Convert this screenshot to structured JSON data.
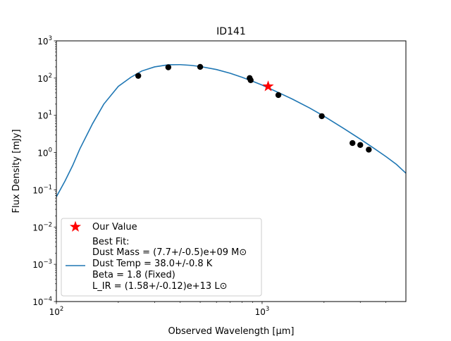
{
  "chart_data": {
    "type": "scatter",
    "title": "ID141",
    "xlabel": "Observed Wavelength [μm]",
    "ylabel": "Flux Density [mJy]",
    "xscale": "log",
    "yscale": "log",
    "xlim": [
      100,
      5000
    ],
    "ylim": [
      0.0001,
      1000
    ],
    "grid": false,
    "legend_position": "lower-left",
    "x_ticks": [
      {
        "value": 100,
        "base": "10",
        "exp": "2"
      },
      {
        "value": 1000,
        "base": "10",
        "exp": "3"
      }
    ],
    "y_ticks": [
      {
        "value": 0.0001,
        "base": "10",
        "exp": "−4"
      },
      {
        "value": 0.001,
        "base": "10",
        "exp": "−3"
      },
      {
        "value": 0.01,
        "base": "10",
        "exp": "−2"
      },
      {
        "value": 0.1,
        "base": "10",
        "exp": "−1"
      },
      {
        "value": 1,
        "base": "10",
        "exp": "0"
      },
      {
        "value": 10,
        "base": "10",
        "exp": "1"
      },
      {
        "value": 100,
        "base": "10",
        "exp": "2"
      },
      {
        "value": 1000,
        "base": "10",
        "exp": "3"
      }
    ],
    "observations": {
      "color": "#000000",
      "points": [
        {
          "x": 250,
          "y": 115
        },
        {
          "x": 350,
          "y": 195
        },
        {
          "x": 500,
          "y": 200
        },
        {
          "x": 870,
          "y": 100
        },
        {
          "x": 880,
          "y": 88
        },
        {
          "x": 1200,
          "y": 35
        },
        {
          "x": 1950,
          "y": 9.5
        },
        {
          "x": 2750,
          "y": 1.8
        },
        {
          "x": 3000,
          "y": 1.6
        },
        {
          "x": 3300,
          "y": 1.2
        }
      ]
    },
    "our_value": {
      "name": "Our Value",
      "color": "#ff0000",
      "x": 1070,
      "y": 60
    },
    "best_fit": {
      "color": "#1f77b4",
      "legend_lines": [
        "Best Fit:",
        "Dust Mass = (7.7+/-0.5)e+09 M⊙",
        "Dust Temp = 38.0+/-0.8 K",
        "Beta = 1.8 (Fixed)",
        "L_IR = (1.58+/-0.12)e+13 L⊙"
      ],
      "x": [
        100,
        110,
        120,
        130,
        150,
        170,
        200,
        230,
        260,
        300,
        350,
        400,
        450,
        500,
        600,
        700,
        800,
        900,
        1000,
        1200,
        1400,
        1700,
        2000,
        2500,
        3000,
        3500,
        4000,
        4500,
        5000
      ],
      "y": [
        0.065,
        0.17,
        0.45,
        1.25,
        6,
        20,
        60,
        105,
        155,
        200,
        228,
        230,
        220,
        205,
        170,
        135,
        105,
        82,
        65,
        41,
        27.5,
        15.8,
        9.5,
        4.4,
        2.3,
        1.3,
        0.78,
        0.48,
        0.28
      ]
    }
  }
}
